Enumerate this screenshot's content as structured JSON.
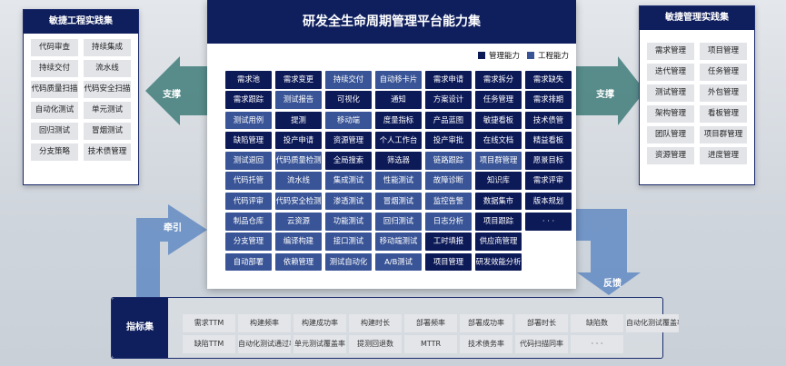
{
  "colors": {
    "management": "#0d1a58",
    "engineering": "#3a5597"
  },
  "left": {
    "title": "敏捷工程实践集",
    "items": [
      "代码审查",
      "持续集成",
      "持续交付",
      "流水线",
      "代码质量扫描",
      "代码安全扫描",
      "自动化测试",
      "单元测试",
      "回归测试",
      "冒烟测试",
      "分支策略",
      "技术债管理"
    ]
  },
  "right": {
    "title": "敏捷管理实践集",
    "items": [
      "需求管理",
      "项目管理",
      "迭代管理",
      "任务管理",
      "测试管理",
      "外包管理",
      "架构管理",
      "看板管理",
      "团队管理",
      "项目群管理",
      "资源管理",
      "进度管理"
    ]
  },
  "center": {
    "title": "研发全生命周期管理平台能力集",
    "legend": {
      "management": "管理能力",
      "engineering": "工程能力"
    },
    "cells": [
      {
        "t": "需求池",
        "k": "m"
      },
      {
        "t": "需求变更",
        "k": "m"
      },
      {
        "t": "持续交付",
        "k": "e"
      },
      {
        "t": "自动移卡片",
        "k": "e"
      },
      {
        "t": "需求申请",
        "k": "m"
      },
      {
        "t": "需求拆分",
        "k": "m"
      },
      {
        "t": "需求缺失",
        "k": "m"
      },
      {
        "t": "需求跟踪",
        "k": "m"
      },
      {
        "t": "测试报告",
        "k": "e"
      },
      {
        "t": "可视化",
        "k": "m"
      },
      {
        "t": "通知",
        "k": "m"
      },
      {
        "t": "方案设计",
        "k": "m"
      },
      {
        "t": "任务管理",
        "k": "m"
      },
      {
        "t": "需求排期",
        "k": "m"
      },
      {
        "t": "测试用例",
        "k": "e"
      },
      {
        "t": "提测",
        "k": "m"
      },
      {
        "t": "移动端",
        "k": "e"
      },
      {
        "t": "度量指标",
        "k": "m"
      },
      {
        "t": "产品蓝图",
        "k": "m"
      },
      {
        "t": "敏捷看板",
        "k": "m"
      },
      {
        "t": "技术债管",
        "k": "m"
      },
      {
        "t": "缺陷管理",
        "k": "m"
      },
      {
        "t": "投产申请",
        "k": "m"
      },
      {
        "t": "资源管理",
        "k": "m"
      },
      {
        "t": "个人工作台",
        "k": "m"
      },
      {
        "t": "投产审批",
        "k": "m"
      },
      {
        "t": "在线文档",
        "k": "m"
      },
      {
        "t": "精益看板",
        "k": "m"
      },
      {
        "t": "测试退回",
        "k": "e"
      },
      {
        "t": "代码质量检测",
        "k": "e"
      },
      {
        "t": "全局搜索",
        "k": "m"
      },
      {
        "t": "筛选器",
        "k": "m"
      },
      {
        "t": "链路跟踪",
        "k": "e"
      },
      {
        "t": "项目群管理",
        "k": "e"
      },
      {
        "t": "愿景目标",
        "k": "m"
      },
      {
        "t": "代码托管",
        "k": "e"
      },
      {
        "t": "流水线",
        "k": "e"
      },
      {
        "t": "集成测试",
        "k": "e"
      },
      {
        "t": "性能测试",
        "k": "e"
      },
      {
        "t": "故障诊断",
        "k": "e"
      },
      {
        "t": "知识库",
        "k": "m"
      },
      {
        "t": "需求评审",
        "k": "m"
      },
      {
        "t": "代码评审",
        "k": "e"
      },
      {
        "t": "代码安全检测",
        "k": "e"
      },
      {
        "t": "渗透测试",
        "k": "e"
      },
      {
        "t": "冒烟测试",
        "k": "e"
      },
      {
        "t": "监控告警",
        "k": "e"
      },
      {
        "t": "数据集市",
        "k": "m"
      },
      {
        "t": "版本规划",
        "k": "m"
      },
      {
        "t": "制品仓库",
        "k": "e"
      },
      {
        "t": "云资源",
        "k": "e"
      },
      {
        "t": "功能测试",
        "k": "e"
      },
      {
        "t": "回归测试",
        "k": "e"
      },
      {
        "t": "日志分析",
        "k": "e"
      },
      {
        "t": "项目跟踪",
        "k": "m"
      },
      {
        "t": "· · ·",
        "k": "m"
      },
      {
        "t": "分支管理",
        "k": "e"
      },
      {
        "t": "编译构建",
        "k": "e"
      },
      {
        "t": "接口测试",
        "k": "e"
      },
      {
        "t": "移动端测试",
        "k": "e"
      },
      {
        "t": "工时填报",
        "k": "m"
      },
      {
        "t": "供应商管理",
        "k": "m"
      },
      {
        "t": "",
        "k": ""
      },
      {
        "t": "自动部署",
        "k": "e"
      },
      {
        "t": "依赖管理",
        "k": "e"
      },
      {
        "t": "测试自动化",
        "k": "e"
      },
      {
        "t": "A/B测试",
        "k": "e"
      },
      {
        "t": "项目管理",
        "k": "m"
      },
      {
        "t": "研发效能分析",
        "k": "m"
      }
    ]
  },
  "arrows": {
    "left": "支撑",
    "right": "支撑",
    "pull": "牵引",
    "feedback": "反馈"
  },
  "metrics": {
    "title": "指标集",
    "items": [
      "需求TTM",
      "构建频率",
      "构建成功率",
      "构建时长",
      "部署频率",
      "部署成功率",
      "部署时长",
      "缺陷数",
      "自动化测试覆盖率",
      "缺陷TTM",
      "自动化测试通过率",
      "单元测试覆盖率",
      "提测回退数",
      "MTTR",
      "技术债务率",
      "代码扫描同率",
      "· · ·"
    ]
  }
}
